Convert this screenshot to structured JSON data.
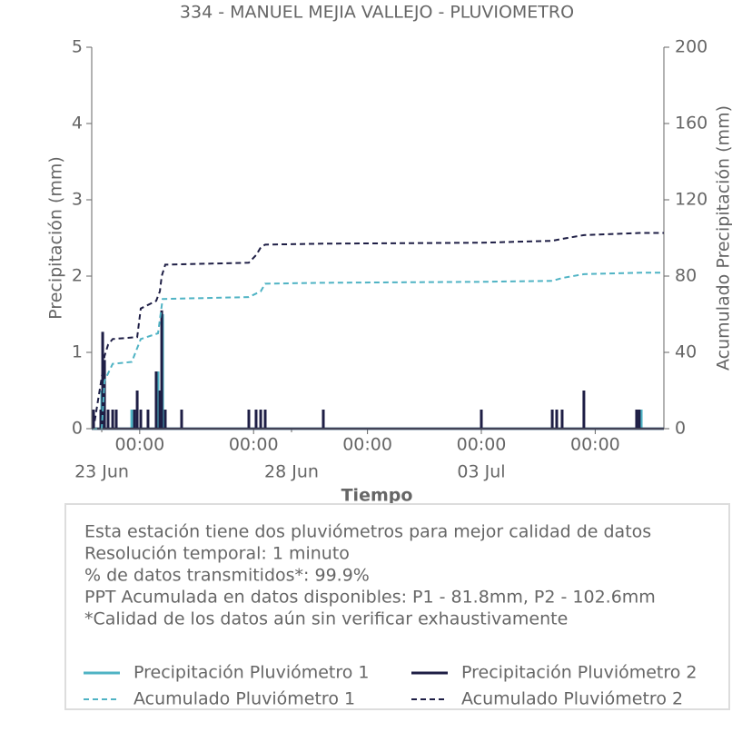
{
  "chart_data": {
    "type": "line",
    "title": "334 - MANUEL MEJIA VALLEJO - PLUVIOMETRO",
    "xlabel": "Tiempo",
    "ylabel": "Precipitación (mm)",
    "y2label": "Acumulado Precipitación (mm)",
    "xlim": [
      "22 Jun 17:40",
      "07 Jul 19:25"
    ],
    "xticks": [
      {
        "value": "24 Jun 00:00",
        "label": "00:00"
      },
      {
        "value": "27 Jun 00:00",
        "label": "00:00"
      },
      {
        "value": "30 Jun 00:00",
        "label": "00:00"
      },
      {
        "value": "03 Jul 00:00",
        "label": "00:00"
      },
      {
        "value": "06 Jul 00:00",
        "label": "00:00"
      }
    ],
    "xticks_minor": [
      {
        "value": "23 Jun 00:00",
        "label": "23 Jun"
      },
      {
        "value": "28 Jun 00:00",
        "label": "28 Jun"
      },
      {
        "value": "03 Jul 00:00",
        "label": "03 Jul"
      }
    ],
    "ylim": [
      0,
      5
    ],
    "yticks": [
      0,
      1,
      2,
      3,
      4,
      5
    ],
    "y2lim": [
      0,
      200
    ],
    "y2ticks": [
      0,
      40,
      80,
      120,
      160,
      200
    ],
    "series": [
      {
        "name": "Precipitación Pluviómetro 1",
        "color": "#4fb3c4",
        "style": "spike",
        "x": [
          "23 Jun 00:00",
          "23 Jun 19:00",
          "24 Jun 11:35",
          "24 Jun 14:30",
          "07 Jul 05:05"
        ],
        "values": [
          0.5,
          0.25,
          0.75,
          1.5,
          0.25
        ]
      },
      {
        "name": "Precipitación Pluviómetro 2",
        "color": "#1e1e45",
        "style": "spike",
        "x": [
          "22 Jun 18:50",
          "22 Jun 23:25",
          "23 Jun 00:35",
          "23 Jun 01:45",
          "23 Jun 04:00",
          "23 Jun 06:55",
          "23 Jun 09:10",
          "23 Jun 20:40",
          "23 Jun 22:25",
          "24 Jun 00:40",
          "24 Jun 05:15",
          "24 Jun 10:25",
          "24 Jun 12:45",
          "24 Jun 13:55",
          "24 Jun 16:10",
          "25 Jun 02:30",
          "26 Jun 21:00",
          "27 Jun 01:35",
          "27 Jun 04:30",
          "27 Jun 07:20",
          "28 Jun 20:05",
          "03 Jul 00:00",
          "04 Jul 20:50",
          "04 Jul 23:40",
          "05 Jul 03:05",
          "05 Jul 16:50",
          "07 Jul 02:10",
          "07 Jul 03:50"
        ],
        "values": [
          0.25,
          0.25,
          1.27,
          0.9,
          0.25,
          0.25,
          0.25,
          0.25,
          0.5,
          0.25,
          0.25,
          0.75,
          0.5,
          1.55,
          0.25,
          0.25,
          0.25,
          0.25,
          0.25,
          0.25,
          0.25,
          0.25,
          0.25,
          0.25,
          0.25,
          0.5,
          0.25,
          0.25
        ]
      },
      {
        "name": "Acumulado Pluviómetro 1",
        "color": "#4fb3c4",
        "style": "dashed",
        "axis": "y2",
        "x": [
          "22 Jun 17:40",
          "23 Jun 00:00",
          "23 Jun 01:45",
          "23 Jun 06:55",
          "23 Jun 19:00",
          "24 Jun 00:40",
          "24 Jun 11:35",
          "24 Jun 14:30",
          "26 Jun 21:00",
          "27 Jun 04:30",
          "27 Jun 07:20",
          "28 Jun 20:05",
          "03 Jul 00:00",
          "04 Jul 20:50",
          "05 Jul 03:05",
          "05 Jul 16:50",
          "07 Jul 05:05",
          "07 Jul 19:25"
        ],
        "values": [
          0,
          0,
          25,
          34,
          35,
          47,
          50,
          68,
          69,
          72,
          76,
          76.5,
          77,
          77.5,
          79,
          81,
          81.8,
          81.8
        ]
      },
      {
        "name": "Acumulado Pluviómetro 2",
        "color": "#1e1e45",
        "style": "dashed",
        "axis": "y2",
        "x": [
          "22 Jun 17:40",
          "22 Jun 18:50",
          "23 Jun 00:35",
          "23 Jun 01:45",
          "23 Jun 04:00",
          "23 Jun 06:55",
          "23 Jun 22:25",
          "24 Jun 00:40",
          "24 Jun 10:25",
          "24 Jun 12:45",
          "24 Jun 13:55",
          "24 Jun 16:10",
          "26 Jun 21:00",
          "27 Jun 01:35",
          "27 Jun 04:30",
          "27 Jun 07:20",
          "28 Jun 20:05",
          "03 Jul 00:00",
          "04 Jul 20:50",
          "05 Jul 03:05",
          "05 Jul 16:50",
          "07 Jul 03:50",
          "07 Jul 19:25"
        ],
        "values": [
          0,
          0.3,
          30,
          38,
          44,
          47,
          48,
          63,
          67,
          72,
          80,
          86,
          87,
          91,
          95,
          96.5,
          97,
          97.5,
          98.5,
          99.5,
          101.5,
          102.6,
          102.6
        ]
      }
    ],
    "notes": [
      "Esta estación tiene dos pluviómetros para mejor calidad de datos",
      "Resolución temporal: 1 minuto",
      "% de datos transmitidos*: 99.9%",
      "PPT Acumulada en datos disponibles: P1 - 81.8mm, P2 - 102.6mm",
      "*Calidad de los datos aún sin verificar exhaustivamente"
    ]
  }
}
